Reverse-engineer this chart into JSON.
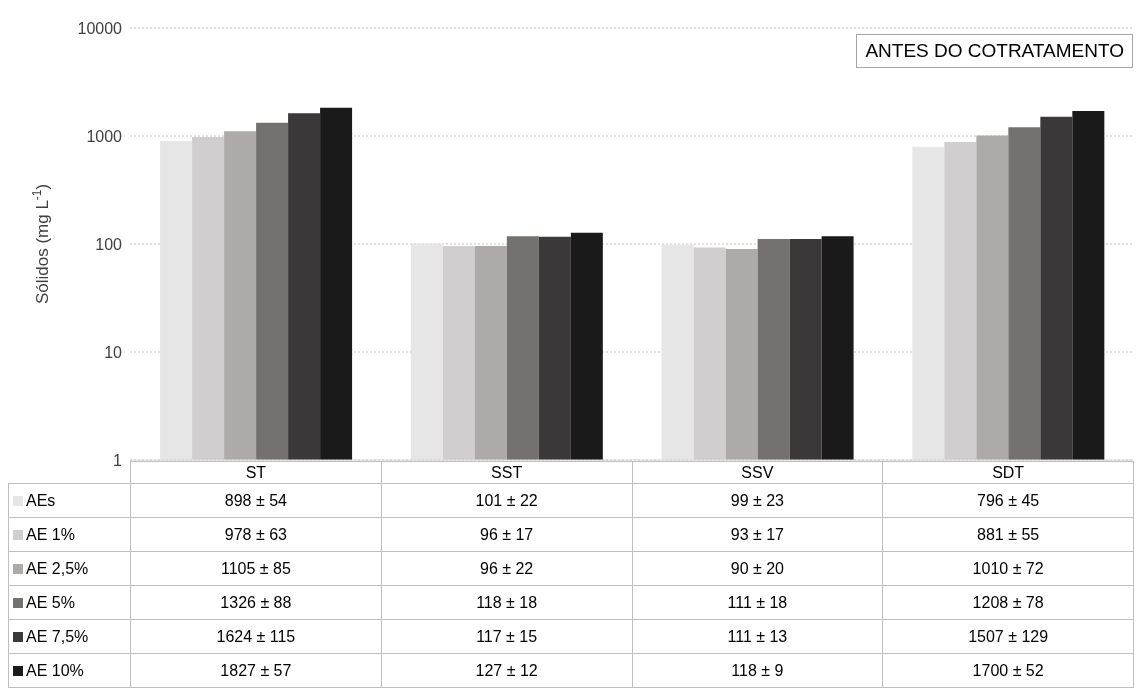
{
  "chart_data": {
    "type": "bar",
    "title": "ANTES DO COTRATAMENTO",
    "ylabel": "Sólidos  (mg L$^{-1}$)",
    "categories": [
      "ST",
      "SST",
      "SSV",
      "SDT"
    ],
    "series": [
      {
        "name": "AEs",
        "color": "#e7e6e6",
        "values": [
          898,
          101,
          99,
          796
        ],
        "value_labels": [
          "898 ± 54",
          "101 ± 22",
          "99 ± 23",
          "796 ± 45"
        ]
      },
      {
        "name": "AE 1%",
        "color": "#d0cece",
        "values": [
          978,
          96,
          93,
          881
        ],
        "value_labels": [
          "978 ± 63",
          "96 ± 17",
          "93 ± 17",
          "881 ± 55"
        ]
      },
      {
        "name": "AE 2,5%",
        "color": "#aeaaaa",
        "values": [
          1105,
          96,
          90,
          1010
        ],
        "value_labels": [
          "1105 ± 85",
          "96 ± 22",
          "90 ± 20",
          "1010 ± 72"
        ]
      },
      {
        "name": "AE 5%",
        "color": "#767171",
        "values": [
          1326,
          118,
          111,
          1208
        ],
        "value_labels": [
          "1326 ± 88",
          "118 ± 18",
          "111 ± 18",
          "1208 ± 78"
        ]
      },
      {
        "name": "AE 7,5%",
        "color": "#3a3838",
        "values": [
          1624,
          117,
          111,
          1507
        ],
        "value_labels": [
          "1624 ± 115",
          "117 ± 15",
          "111 ± 13",
          "1507 ± 129"
        ]
      },
      {
        "name": "AE 10%",
        "color": "#1a1a1a",
        "values": [
          1827,
          127,
          118,
          1700
        ],
        "value_labels": [
          "1827 ± 57",
          "127 ± 12",
          "118 ± 9",
          "1700 ± 52"
        ]
      }
    ],
    "log": true,
    "ylim": [
      1,
      10000
    ],
    "yticks": [
      1,
      10,
      100,
      1000,
      10000
    ],
    "grid": "y",
    "legend": "bottom"
  }
}
